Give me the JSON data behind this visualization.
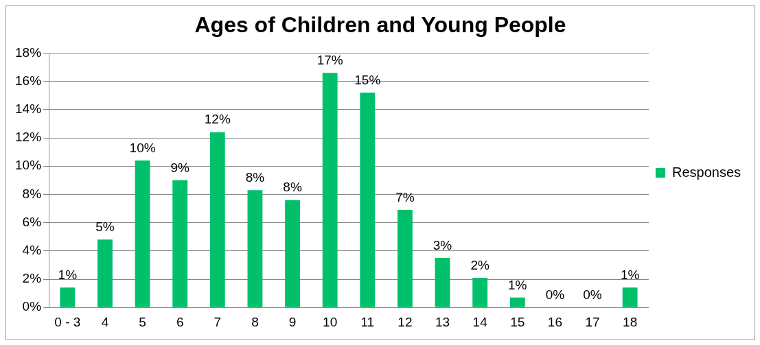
{
  "chart_data": {
    "type": "bar",
    "title": "Ages of Children and Young People",
    "categories": [
      "0 - 3",
      "4",
      "5",
      "6",
      "7",
      "8",
      "9",
      "10",
      "11",
      "12",
      "13",
      "14",
      "15",
      "16",
      "17",
      "18"
    ],
    "series": [
      {
        "name": "Responses",
        "color": "#00c06b",
        "values": [
          1.4,
          4.8,
          10.4,
          9.0,
          12.4,
          8.3,
          7.6,
          16.6,
          15.2,
          6.9,
          3.5,
          2.1,
          0.7,
          0,
          0,
          1.4
        ],
        "value_labels": [
          "1%",
          "5%",
          "10%",
          "9%",
          "12%",
          "8%",
          "8%",
          "17%",
          "15%",
          "7%",
          "3%",
          "2%",
          "1%",
          "0%",
          "0%",
          "1%"
        ]
      }
    ],
    "ylim": [
      0,
      18
    ],
    "yticks": [
      {
        "value": 0,
        "label": "0%"
      },
      {
        "value": 2,
        "label": "2%"
      },
      {
        "value": 4,
        "label": "4%"
      },
      {
        "value": 6,
        "label": "6%"
      },
      {
        "value": 8,
        "label": "8%"
      },
      {
        "value": 10,
        "label": "10%"
      },
      {
        "value": 12,
        "label": "12%"
      },
      {
        "value": 14,
        "label": "14%"
      },
      {
        "value": 16,
        "label": "16%"
      },
      {
        "value": 18,
        "label": "18%"
      }
    ],
    "grid": "y",
    "legend": "right"
  }
}
